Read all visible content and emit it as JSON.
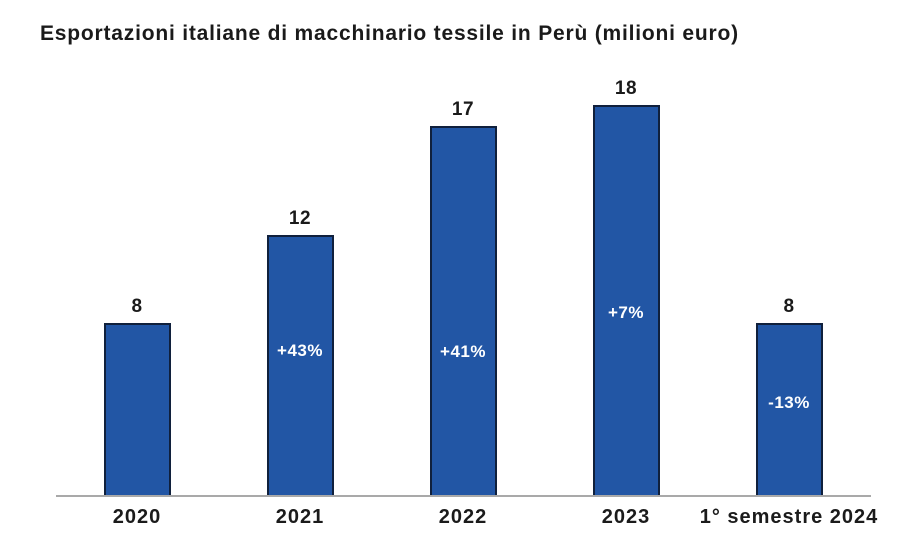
{
  "chart_data": {
    "type": "bar",
    "title": "Esportazioni italiane di macchinario tessile in Perù (milioni euro)",
    "categories": [
      "2020",
      "2021",
      "2022",
      "2023",
      "1° semestre 2024"
    ],
    "values": [
      8,
      12,
      17,
      18,
      8
    ],
    "bar_labels": [
      "8",
      "12",
      "17",
      "18",
      "8"
    ],
    "pct_labels": [
      "",
      "+43%",
      "+41%",
      "+7%",
      "-13%"
    ],
    "xlabel": "",
    "ylim": [
      0,
      20
    ],
    "grid": false,
    "legend_position": "none",
    "colors": {
      "bar_fill": "#2256A5",
      "bar_border": "#10203C",
      "axis_line": "#A9A9A9",
      "label_text": "#1A1A1A",
      "pct_text": "#FFFFFF"
    }
  }
}
